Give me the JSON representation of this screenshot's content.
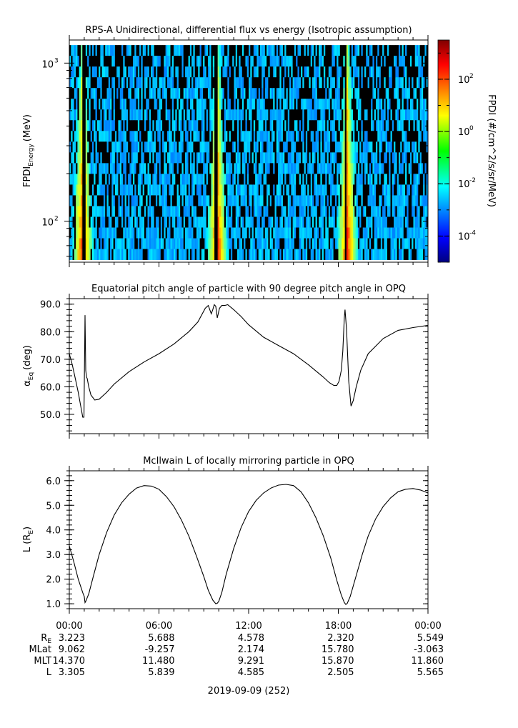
{
  "chart_data": [
    {
      "type": "heatmap",
      "title": "RPS-A Unidirectional, differential flux vs energy (Isotropic assumption)",
      "ylabel_main": "FPDI",
      "ylabel_sub": "Energy",
      "ylabel_unit": "(MeV)",
      "yscale": "log",
      "ylim": [
        55,
        1400
      ],
      "y_ticks": [
        {
          "v": 100,
          "base": "10",
          "exp": "2"
        },
        {
          "v": 1000,
          "base": "10",
          "exp": "3"
        }
      ],
      "xlim_hours": [
        0,
        24
      ],
      "colorbar": {
        "label": "FPDI (#/cm^2/s/sr/MeV)",
        "scale": "log",
        "range_exp": [
          -5,
          3.5
        ],
        "ticks": [
          {
            "exp": -4,
            "label": "-4"
          },
          {
            "exp": -2,
            "label": "-2"
          },
          {
            "exp": 0,
            "label": "0"
          },
          {
            "exp": 2,
            "label": "2"
          }
        ]
      },
      "high_flux_bands_hours": [
        0.9,
        9.9,
        18.6
      ],
      "no_data_gaps_hours": [
        1.0,
        9.8,
        18.5
      ],
      "energy_bins_top_MeV": 1300,
      "energy_bins_bottom_MeV": 57
    },
    {
      "type": "line",
      "title": "Equatorial pitch angle of particle with 90 degree pitch angle in OPQ",
      "ylabel_main": "α",
      "ylabel_sub": "Eq",
      "ylabel_unit": "(deg)",
      "ylim": [
        43,
        92
      ],
      "y_ticks": [
        50,
        60,
        70,
        80,
        90
      ],
      "series": [
        {
          "x": [
            0,
            0.2,
            0.4,
            0.6,
            0.8,
            0.9,
            0.98,
            1.05,
            1.1,
            1.15,
            1.2,
            1.3,
            1.45,
            1.7,
            2.0,
            2.5,
            3.0,
            4.0,
            5.0,
            6.0,
            7.0,
            8.0,
            8.6,
            9.1,
            9.3,
            9.5,
            9.6,
            9.7,
            9.8,
            9.9,
            10.05,
            10.2,
            10.4,
            10.6,
            11.0,
            11.5,
            12.0,
            13.0,
            14.0,
            15.0,
            16.0,
            17.0,
            17.4,
            17.7,
            17.9,
            18.05,
            18.2,
            18.3,
            18.4,
            18.45,
            18.55,
            18.7,
            18.85,
            19.0,
            19.2,
            19.5,
            20.0,
            21.0,
            22.0,
            23.0,
            24.0
          ],
          "y": [
            72,
            68,
            63,
            58,
            52,
            49,
            49,
            86,
            66,
            63.5,
            63,
            60,
            57,
            55.2,
            55.5,
            58,
            61,
            65.5,
            69,
            72,
            75.5,
            80,
            83.5,
            88.5,
            89.5,
            86.5,
            88,
            89.8,
            89.2,
            85,
            88.5,
            89.5,
            89.5,
            89.8,
            88,
            85.5,
            82.5,
            78,
            75,
            72,
            68,
            63.5,
            61.5,
            60.5,
            60.5,
            62,
            66,
            73,
            85,
            88,
            81,
            62,
            53,
            55,
            60,
            66,
            72,
            77.5,
            80.5,
            81.5,
            82.3
          ]
        }
      ]
    },
    {
      "type": "line",
      "title": "McIlwain L of locally mirroring particle in OPQ",
      "ylabel_main": "L (R",
      "ylabel_sub": "E",
      "ylabel_unit": ")",
      "ylim": [
        0.8,
        6.4
      ],
      "y_ticks": [
        1,
        2,
        3,
        4,
        5,
        6
      ],
      "series": [
        {
          "x": [
            0,
            0.3,
            0.6,
            0.9,
            1.0,
            1.05,
            1.1,
            1.3,
            1.6,
            2.0,
            2.5,
            3.0,
            3.5,
            4.0,
            4.5,
            5.0,
            5.5,
            6.0,
            6.5,
            7.0,
            7.5,
            8.0,
            8.5,
            9.0,
            9.3,
            9.6,
            9.8,
            9.9,
            10.0,
            10.2,
            10.5,
            11.0,
            11.5,
            12.0,
            12.5,
            13.0,
            13.5,
            14.0,
            14.5,
            15.0,
            15.5,
            16.0,
            16.5,
            17.0,
            17.5,
            17.9,
            18.2,
            18.4,
            18.5,
            18.6,
            18.8,
            19.2,
            19.6,
            20.0,
            20.5,
            21.0,
            21.5,
            22.0,
            22.5,
            23.0,
            23.5,
            24.0
          ],
          "y": [
            3.35,
            2.7,
            2.0,
            1.45,
            1.3,
            1.05,
            1.1,
            1.4,
            2.1,
            3.0,
            3.9,
            4.6,
            5.1,
            5.45,
            5.7,
            5.8,
            5.78,
            5.65,
            5.35,
            4.95,
            4.4,
            3.75,
            2.95,
            2.1,
            1.55,
            1.15,
            1.0,
            1.02,
            1.1,
            1.45,
            2.2,
            3.25,
            4.1,
            4.75,
            5.2,
            5.5,
            5.7,
            5.82,
            5.85,
            5.8,
            5.55,
            5.1,
            4.5,
            3.75,
            2.85,
            1.95,
            1.35,
            1.05,
            0.97,
            1.02,
            1.3,
            2.15,
            3.0,
            3.75,
            4.45,
            4.95,
            5.3,
            5.55,
            5.65,
            5.68,
            5.62,
            5.5
          ]
        }
      ]
    }
  ],
  "x_axis": {
    "tick_labels": [
      {
        "h": 0,
        "label": "00:00"
      },
      {
        "h": 6,
        "label": "06:00"
      },
      {
        "h": 12,
        "label": "12:00"
      },
      {
        "h": 18,
        "label": "18:00"
      },
      {
        "h": 24,
        "label": "00:00"
      }
    ],
    "row_labels": [
      {
        "main": "R",
        "sub": "E"
      },
      {
        "main": "MLat",
        "sub": ""
      },
      {
        "main": "MLT",
        "sub": ""
      },
      {
        "main": "L",
        "sub": ""
      }
    ],
    "rows": [
      [
        "3.223",
        "5.688",
        "4.578",
        "2.320",
        "5.549"
      ],
      [
        "9.062",
        "-9.257",
        "2.174",
        "15.780",
        "-3.063"
      ],
      [
        "14.370",
        "11.480",
        "9.291",
        "15.870",
        "11.860"
      ],
      [
        "3.305",
        "5.839",
        "4.585",
        "2.505",
        "5.565"
      ]
    ],
    "date_label": "2019-09-09 (252)"
  }
}
